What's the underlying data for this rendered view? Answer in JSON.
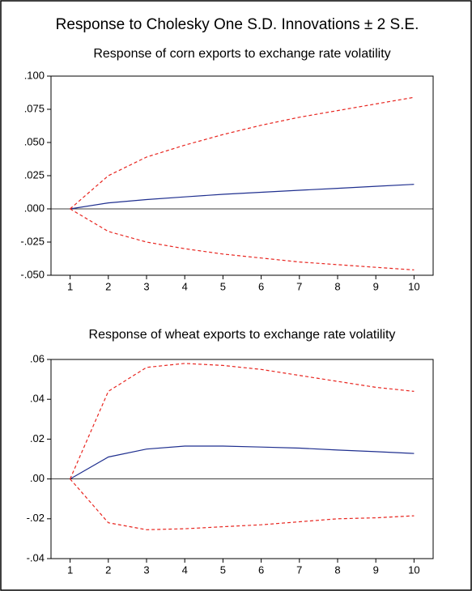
{
  "title": "Response to Cholesky One S.D. Innovations ± 2 S.E.",
  "chart_data": [
    {
      "type": "line",
      "title": "Response of corn exports to exchange rate volatility",
      "x": [
        1,
        2,
        3,
        4,
        5,
        6,
        7,
        8,
        9,
        10
      ],
      "xlim": [
        0.5,
        10.5
      ],
      "xticks": [
        1,
        2,
        3,
        4,
        5,
        6,
        7,
        8,
        9,
        10
      ],
      "ylim": [
        -0.05,
        0.1
      ],
      "yticks": [
        {
          "value": -0.05,
          "label": "-.050"
        },
        {
          "value": -0.025,
          "label": "-.025"
        },
        {
          "value": 0,
          "label": ".000"
        },
        {
          "value": 0.025,
          "label": ".025"
        },
        {
          "value": 0.05,
          "label": ".050"
        },
        {
          "value": 0.075,
          "label": ".075"
        },
        {
          "value": 0.1,
          "label": ".100"
        }
      ],
      "zero_line": true,
      "series": [
        {
          "color": "#1f2f8f",
          "dashed": false,
          "values": [
            0,
            0.0045,
            0.007,
            0.009,
            0.011,
            0.0125,
            0.014,
            0.0155,
            0.017,
            0.0185
          ]
        },
        {
          "color": "#e8251f",
          "dashed": true,
          "values": [
            0,
            0.025,
            0.039,
            0.048,
            0.056,
            0.063,
            0.069,
            0.074,
            0.079,
            0.084
          ]
        },
        {
          "color": "#e8251f",
          "dashed": true,
          "values": [
            0,
            -0.017,
            -0.025,
            -0.03,
            -0.034,
            -0.037,
            -0.04,
            -0.042,
            -0.044,
            -0.046
          ]
        }
      ]
    },
    {
      "type": "line",
      "title": "Response of wheat exports to exchange rate volatility",
      "x": [
        1,
        2,
        3,
        4,
        5,
        6,
        7,
        8,
        9,
        10
      ],
      "xlim": [
        0.5,
        10.5
      ],
      "xticks": [
        1,
        2,
        3,
        4,
        5,
        6,
        7,
        8,
        9,
        10
      ],
      "ylim": [
        -0.04,
        0.06
      ],
      "yticks": [
        {
          "value": -0.04,
          "label": "-.04"
        },
        {
          "value": -0.02,
          "label": "-.02"
        },
        {
          "value": 0,
          "label": ".00"
        },
        {
          "value": 0.02,
          "label": ".02"
        },
        {
          "value": 0.04,
          "label": ".04"
        },
        {
          "value": 0.06,
          "label": ".06"
        }
      ],
      "zero_line": true,
      "series": [
        {
          "color": "#1f2f8f",
          "dashed": false,
          "values": [
            0,
            0.011,
            0.015,
            0.0165,
            0.0165,
            0.016,
            0.0155,
            0.0145,
            0.0137,
            0.0128
          ]
        },
        {
          "color": "#e8251f",
          "dashed": true,
          "values": [
            0,
            0.044,
            0.056,
            0.058,
            0.057,
            0.055,
            0.052,
            0.049,
            0.046,
            0.044
          ]
        },
        {
          "color": "#e8251f",
          "dashed": true,
          "values": [
            0,
            -0.022,
            -0.0255,
            -0.025,
            -0.024,
            -0.023,
            -0.0215,
            -0.02,
            -0.0195,
            -0.0185
          ]
        }
      ]
    }
  ]
}
